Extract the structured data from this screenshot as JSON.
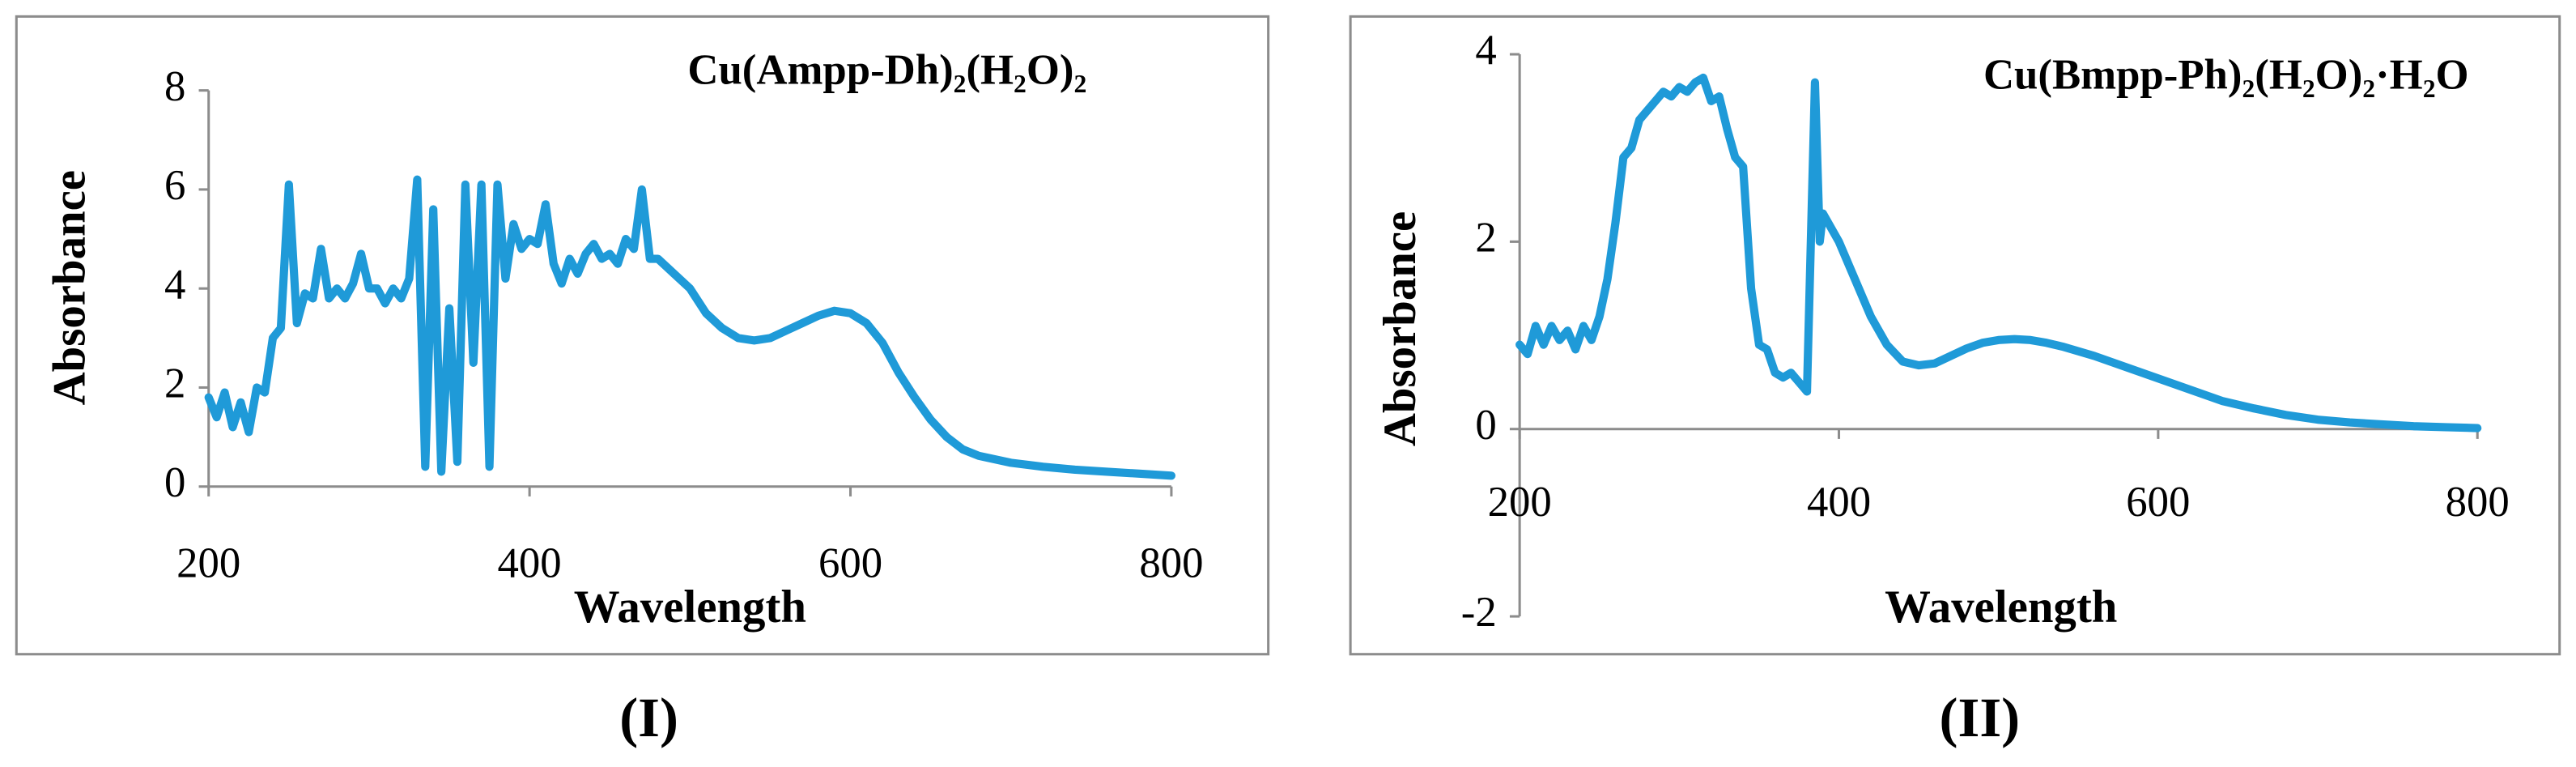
{
  "chart_data": [
    {
      "type": "line",
      "title": "Cu(Ampp-Dh)₂(H₂O)₂",
      "x_label": "Wavelength",
      "y_label": "Absorbance",
      "label": "(I)",
      "color": "#1f9ad8",
      "xlim": [
        200,
        800
      ],
      "xticks": [
        200,
        400,
        600,
        800
      ],
      "ylim": [
        0,
        8
      ],
      "yticks": [
        0,
        2,
        4,
        6,
        8
      ],
      "x": [
        200,
        205,
        210,
        215,
        220,
        225,
        230,
        235,
        240,
        245,
        250,
        255,
        260,
        265,
        270,
        275,
        280,
        285,
        290,
        295,
        300,
        305,
        310,
        315,
        320,
        325,
        330,
        335,
        340,
        345,
        350,
        355,
        360,
        365,
        370,
        375,
        380,
        385,
        390,
        395,
        400,
        405,
        410,
        415,
        420,
        425,
        430,
        435,
        440,
        445,
        450,
        455,
        460,
        465,
        470,
        475,
        480,
        490,
        500,
        510,
        520,
        530,
        540,
        550,
        560,
        570,
        580,
        590,
        600,
        610,
        620,
        630,
        640,
        650,
        660,
        670,
        680,
        700,
        720,
        740,
        760,
        780,
        800
      ],
      "values": [
        1.8,
        1.4,
        1.9,
        1.2,
        1.7,
        1.1,
        2.0,
        1.9,
        3.0,
        3.2,
        6.1,
        3.3,
        3.9,
        3.8,
        4.8,
        3.8,
        4.0,
        3.8,
        4.1,
        4.7,
        4.0,
        4.0,
        3.7,
        4.0,
        3.8,
        4.2,
        6.2,
        0.4,
        5.6,
        0.3,
        3.6,
        0.5,
        6.1,
        2.5,
        6.1,
        0.4,
        6.1,
        4.2,
        5.3,
        4.8,
        5.0,
        4.9,
        5.7,
        4.5,
        4.1,
        4.6,
        4.3,
        4.7,
        4.9,
        4.6,
        4.7,
        4.5,
        5.0,
        4.8,
        6.0,
        4.6,
        4.6,
        4.3,
        4.0,
        3.5,
        3.2,
        3.0,
        2.95,
        3.0,
        3.15,
        3.3,
        3.45,
        3.55,
        3.5,
        3.3,
        2.9,
        2.3,
        1.8,
        1.35,
        1.0,
        0.75,
        0.62,
        0.48,
        0.4,
        0.34,
        0.3,
        0.26,
        0.22
      ]
    },
    {
      "type": "line",
      "title": "Cu(Bmpp-Ph)₂(H₂O)₂·H₂O",
      "x_label": "Wavelength",
      "y_label": "Absorbance",
      "label": "(II)",
      "color": "#1f9ad8",
      "xlim": [
        200,
        800
      ],
      "xticks": [
        200,
        400,
        600,
        800
      ],
      "ylim": [
        -2,
        4
      ],
      "yticks": [
        -2,
        0,
        2,
        4
      ],
      "x": [
        200,
        205,
        210,
        215,
        220,
        225,
        230,
        235,
        240,
        245,
        250,
        255,
        260,
        265,
        270,
        275,
        280,
        285,
        290,
        295,
        300,
        305,
        310,
        315,
        320,
        325,
        330,
        335,
        340,
        345,
        350,
        355,
        360,
        365,
        370,
        375,
        380,
        385,
        388,
        390,
        400,
        410,
        420,
        430,
        440,
        450,
        460,
        470,
        480,
        490,
        500,
        510,
        520,
        530,
        540,
        560,
        580,
        600,
        620,
        640,
        660,
        680,
        700,
        720,
        740,
        760,
        780,
        800
      ],
      "values": [
        0.9,
        0.8,
        1.1,
        0.9,
        1.1,
        0.95,
        1.05,
        0.85,
        1.1,
        0.95,
        1.2,
        1.6,
        2.2,
        2.9,
        3.0,
        3.3,
        3.4,
        3.5,
        3.6,
        3.55,
        3.65,
        3.6,
        3.7,
        3.75,
        3.5,
        3.55,
        3.2,
        2.9,
        2.8,
        1.5,
        0.9,
        0.85,
        0.6,
        0.55,
        0.6,
        0.5,
        0.4,
        3.7,
        2.0,
        2.3,
        2.0,
        1.6,
        1.2,
        0.9,
        0.72,
        0.68,
        0.7,
        0.78,
        0.86,
        0.92,
        0.95,
        0.96,
        0.95,
        0.92,
        0.88,
        0.78,
        0.66,
        0.54,
        0.42,
        0.3,
        0.22,
        0.15,
        0.1,
        0.07,
        0.05,
        0.03,
        0.02,
        0.01
      ]
    }
  ]
}
